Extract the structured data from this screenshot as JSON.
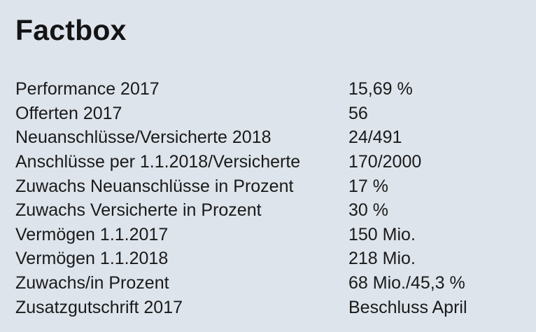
{
  "title": "Factbox",
  "rows": [
    {
      "label": "Performance 2017",
      "value": "15,69 %"
    },
    {
      "label": "Offerten 2017",
      "value": "56"
    },
    {
      "label": "Neuanschlüsse/Versicherte 2018",
      "value": "24/491"
    },
    {
      "label": "Anschlüsse per 1.1.2018/Versicherte",
      "value": "170/2000"
    },
    {
      "label": "Zuwachs Neuanschlüsse in Prozent",
      "value": "17 %"
    },
    {
      "label": "Zuwachs Versicherte in Prozent",
      "value": "30 %"
    },
    {
      "label": "Vermögen 1.1.2017",
      "value": "150 Mio."
    },
    {
      "label": "Vermögen 1.1.2018",
      "value": "218 Mio."
    },
    {
      "label": "Zuwachs/in Prozent",
      "value": "68 Mio./45,3 %"
    },
    {
      "label": "Zusatzgutschrift 2017",
      "value": "Beschluss April"
    }
  ],
  "colors": {
    "background": "#dde4ec",
    "text": "#1a1a1a"
  }
}
